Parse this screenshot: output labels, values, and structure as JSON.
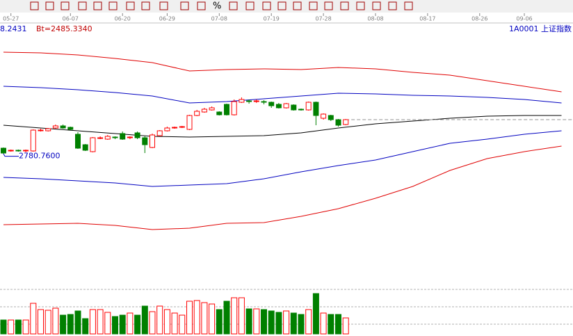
{
  "toolbar": {
    "percent_button": "%"
  },
  "chart_data": {
    "type": "candlestick",
    "header": {
      "left_value": "8.2431",
      "bt_label": "Bt=2485.3340",
      "symbol": "1A0001  上证指数"
    },
    "annotation": {
      "value": 2780.76,
      "label": "2780.7600"
    },
    "xticks": [
      {
        "value": 1,
        "label": "05-27"
      },
      {
        "value": 9,
        "label": "06-07"
      },
      {
        "value": 16,
        "label": "06-20"
      },
      {
        "value": 22,
        "label": "06-29"
      },
      {
        "value": 29,
        "label": "07-08"
      },
      {
        "value": 36,
        "label": "07-19"
      },
      {
        "value": 43,
        "label": "07-28"
      },
      {
        "value": 50,
        "label": "08-08"
      },
      {
        "value": 57,
        "label": "08-17"
      },
      {
        "value": 64,
        "label": "08-26"
      },
      {
        "value": 70,
        "label": "09-06"
      }
    ],
    "ylim": [
      2420,
      3140
    ],
    "up_color": "#ff0000",
    "down_color": "#008000",
    "candles": {
      "open": [
        2784,
        2776,
        2778,
        2776,
        2776,
        2834,
        2834,
        2842,
        2848,
        2844,
        2824,
        2794,
        2774,
        2812,
        2810,
        2816,
        2826,
        2814,
        2828,
        2814,
        2786,
        2820,
        2834,
        2842,
        2844,
        2838,
        2878,
        2888,
        2894,
        2888,
        2910,
        2880,
        2916,
        2920,
        2918,
        2918,
        2916,
        2910,
        2900,
        2908,
        2896,
        2894,
        2916,
        2870,
        2878,
        2866,
        2852
      ],
      "high": [
        2786,
        2780,
        2780,
        2780,
        2838,
        2840,
        2842,
        2852,
        2852,
        2846,
        2830,
        2796,
        2816,
        2818,
        2822,
        2818,
        2832,
        2818,
        2832,
        2818,
        2826,
        2836,
        2846,
        2846,
        2848,
        2880,
        2894,
        2900,
        2904,
        2890,
        2912,
        2924,
        2930,
        2924,
        2924,
        2922,
        2918,
        2914,
        2914,
        2910,
        2898,
        2918,
        2918,
        2884,
        2880,
        2868,
        2868
      ],
      "low": [
        2768,
        2774,
        2774,
        2772,
        2774,
        2832,
        2832,
        2840,
        2840,
        2836,
        2782,
        2776,
        2772,
        2810,
        2808,
        2810,
        2808,
        2810,
        2810,
        2770,
        2784,
        2818,
        2832,
        2840,
        2842,
        2836,
        2876,
        2886,
        2892,
        2878,
        2878,
        2878,
        2914,
        2912,
        2914,
        2910,
        2900,
        2898,
        2898,
        2892,
        2892,
        2892,
        2850,
        2866,
        2862,
        2846,
        2850
      ],
      "close": [
        2770,
        2778,
        2776,
        2778,
        2836,
        2836,
        2840,
        2848,
        2842,
        2838,
        2784,
        2778,
        2814,
        2814,
        2818,
        2814,
        2810,
        2816,
        2814,
        2794,
        2822,
        2834,
        2842,
        2844,
        2846,
        2878,
        2890,
        2896,
        2900,
        2880,
        2880,
        2918,
        2924,
        2918,
        2920,
        2916,
        2906,
        2900,
        2912,
        2894,
        2894,
        2916,
        2878,
        2882,
        2866,
        2850,
        2866
      ]
    },
    "bands": {
      "x": [
        0,
        5,
        10,
        15,
        20,
        25,
        30,
        35,
        40,
        45,
        50,
        55,
        60,
        65,
        70,
        75
      ],
      "series": [
        {
          "color": "#e00000",
          "values": [
            3060,
            3058,
            3052,
            3042,
            3030,
            3006,
            3010,
            3012,
            3010,
            3016,
            3012,
            3002,
            2994,
            2978,
            2962,
            2946
          ]
        },
        {
          "color": "#0000c0",
          "values": [
            2962,
            2958,
            2952,
            2944,
            2934,
            2914,
            2918,
            2926,
            2934,
            2942,
            2940,
            2936,
            2934,
            2930,
            2924,
            2914
          ]
        },
        {
          "color": "#000000",
          "values": [
            2850,
            2842,
            2834,
            2826,
            2818,
            2816,
            2818,
            2820,
            2828,
            2842,
            2854,
            2862,
            2870,
            2876,
            2878,
            2878
          ]
        },
        {
          "color": "#0000c0",
          "values": [
            2700,
            2696,
            2690,
            2684,
            2674,
            2678,
            2682,
            2696,
            2716,
            2734,
            2750,
            2774,
            2798,
            2810,
            2824,
            2834
          ]
        },
        {
          "color": "#e00000",
          "values": [
            2564,
            2566,
            2568,
            2562,
            2550,
            2554,
            2568,
            2570,
            2588,
            2610,
            2640,
            2674,
            2720,
            2754,
            2774,
            2790
          ]
        }
      ]
    },
    "volume": {
      "ylim": [
        0,
        65
      ],
      "values": [
        20,
        20,
        20,
        20,
        44,
        35,
        34,
        37,
        27,
        28,
        33,
        22,
        35,
        35,
        31,
        25,
        27,
        30,
        27,
        40,
        32,
        40,
        35,
        30,
        27,
        47,
        48,
        45,
        43,
        35,
        47,
        52,
        52,
        36,
        36,
        35,
        33,
        31,
        33,
        30,
        28,
        35,
        58,
        30,
        28,
        28,
        23
      ]
    }
  }
}
